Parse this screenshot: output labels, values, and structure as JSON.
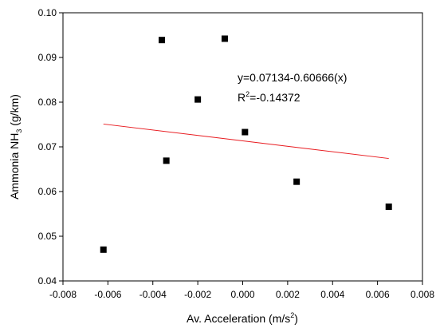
{
  "chart_data": {
    "type": "scatter",
    "x_label": [
      "Av. Acceleration (m/s",
      "2",
      ")"
    ],
    "y_label": [
      "Ammonia NH",
      "3",
      " (g/km)"
    ],
    "annotation": [
      "y=0.07134-0.60666(x)"
    ],
    "annotation2": [
      "R",
      "2",
      "=-0.14372"
    ],
    "series": [
      {
        "type": "scatter",
        "color": "#000000",
        "x": [
          -0.0062,
          -0.0036,
          -0.0034,
          -0.002,
          -0.0008,
          0.0001,
          0.0024,
          0.0065
        ],
        "values": [
          0.047,
          0.0939,
          0.0669,
          0.0806,
          0.0942,
          0.0733,
          0.0622,
          0.0566
        ]
      },
      {
        "type": "line",
        "color": "#e8191e",
        "x": [
          -0.0062,
          0.0065
        ],
        "values": [
          0.0751,
          0.0674
        ]
      }
    ],
    "xlim": [
      -0.008,
      0.008
    ],
    "xticks": [
      -0.008,
      -0.006,
      -0.004,
      -0.002,
      {
        "value": 0,
        "label": "0.000"
      },
      0.002,
      0.004,
      0.006,
      0.008
    ],
    "ylim": [
      0.04,
      0.1
    ],
    "yticks": [
      0.04,
      0.05,
      0.06,
      0.07,
      0.08,
      0.09,
      {
        "value": 0.1,
        "label": "0.10"
      }
    ],
    "grid": false
  }
}
